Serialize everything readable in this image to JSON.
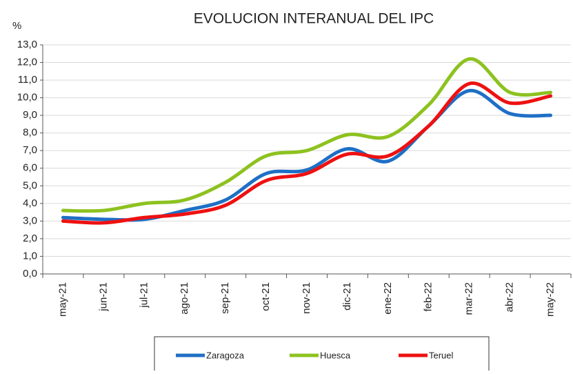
{
  "chart_data": {
    "type": "line",
    "title": "EVOLUCION INTERANUAL DEL IPC",
    "y_label": "%",
    "categories": [
      "may-21",
      "jun-21",
      "jul-21",
      "ago-21",
      "sep-21",
      "oct-21",
      "nov-21",
      "dic-21",
      "ene-22",
      "feb-22",
      "mar-22",
      "abr-22",
      "may-22"
    ],
    "series": [
      {
        "name": "Zaragoza",
        "color": "#1f6fc5",
        "values": [
          3.2,
          3.1,
          3.1,
          3.6,
          4.2,
          5.7,
          5.9,
          7.1,
          6.4,
          8.4,
          10.4,
          9.1,
          9.0
        ]
      },
      {
        "name": "Huesca",
        "color": "#8dc21f",
        "values": [
          3.6,
          3.6,
          4.0,
          4.2,
          5.2,
          6.7,
          7.0,
          7.9,
          7.8,
          9.6,
          12.2,
          10.3,
          10.3
        ]
      },
      {
        "name": "Teruel",
        "color": "#ee1111",
        "values": [
          3.0,
          2.9,
          3.2,
          3.4,
          3.9,
          5.3,
          5.7,
          6.8,
          6.7,
          8.4,
          10.8,
          9.7,
          10.1
        ]
      }
    ],
    "ylim": [
      0,
      13
    ],
    "yticks": [
      {
        "value": 0,
        "label": "0,0"
      },
      {
        "value": 1,
        "label": "1,0"
      },
      {
        "value": 2,
        "label": "2,0"
      },
      {
        "value": 3,
        "label": "3,0"
      },
      {
        "value": 4,
        "label": "4,0"
      },
      {
        "value": 5,
        "label": "5,0"
      },
      {
        "value": 6,
        "label": "6,0"
      },
      {
        "value": 7,
        "label": "7,0"
      },
      {
        "value": 8,
        "label": "8,0"
      },
      {
        "value": 9,
        "label": "9,0"
      },
      {
        "value": 10,
        "label": "10,0"
      },
      {
        "value": 11,
        "label": "11,0"
      },
      {
        "value": 12,
        "label": "12,0"
      },
      {
        "value": 13,
        "label": "13,0"
      }
    ],
    "grid": true,
    "legend": "bottom"
  }
}
